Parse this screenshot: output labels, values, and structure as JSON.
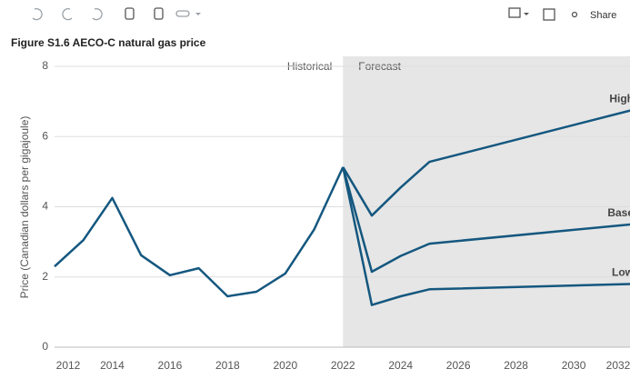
{
  "toolbar": {
    "share": "Share"
  },
  "chart_data": {
    "type": "line",
    "title": "Figure S1.6  AECO-C natural gas price",
    "y_label": "Price (Canadian dollars per gigajoule)",
    "annotations": [
      "Historical",
      "Forecast"
    ],
    "forecast_start": 2022,
    "xlim": [
      2012,
      2032
    ],
    "xticks": [
      2012,
      2014,
      2016,
      2018,
      2020,
      2022,
      2024,
      2026,
      2028,
      2030,
      2032
    ],
    "ylim": [
      0,
      8
    ],
    "yticks": [
      0,
      2,
      4,
      6,
      8
    ],
    "grid": true,
    "series": [
      {
        "color": "#14577f",
        "x": [
          2012,
          2013,
          2014,
          2015,
          2016,
          2017,
          2018,
          2019,
          2020,
          2021,
          2022
        ],
        "values": [
          2.3,
          3.05,
          4.25,
          2.62,
          2.05,
          2.25,
          1.45,
          1.58,
          2.1,
          3.35,
          5.13
        ]
      },
      {
        "name": "High",
        "color": "#14577f",
        "x": [
          2022,
          2023,
          2024,
          2025,
          2032
        ],
        "values": [
          5.13,
          3.75,
          4.55,
          5.28,
          6.75
        ]
      },
      {
        "name": "Base",
        "color": "#14577f",
        "x": [
          2022,
          2023,
          2024,
          2025,
          2032
        ],
        "values": [
          5.13,
          2.15,
          2.6,
          2.95,
          3.5
        ]
      },
      {
        "name": "Low",
        "color": "#14577f",
        "x": [
          2022,
          2023,
          2024,
          2025,
          2032
        ],
        "values": [
          5.13,
          1.2,
          1.45,
          1.65,
          1.8
        ]
      }
    ]
  }
}
